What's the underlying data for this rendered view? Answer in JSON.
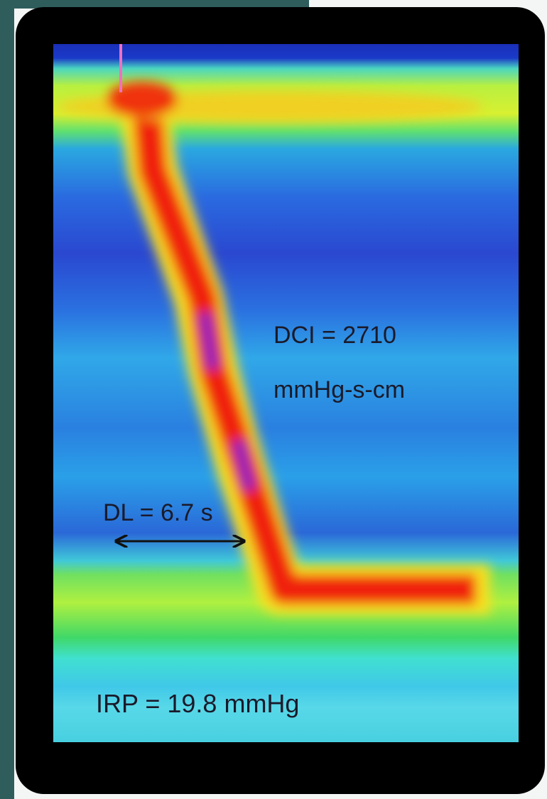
{
  "annotations": {
    "dci": "DCI = 2710",
    "dci_unit": "mmHg-s-cm",
    "dl": "DL = 6.7 s",
    "irp": "IRP = 19.8 mmHg"
  }
}
